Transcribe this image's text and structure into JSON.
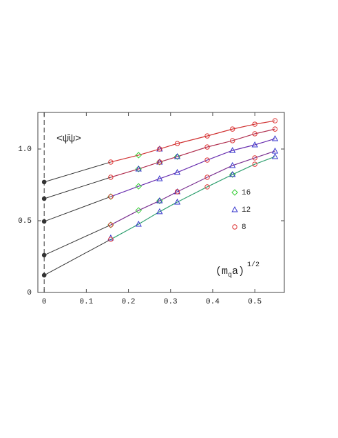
{
  "chart_data": {
    "type": "scatter",
    "y_label": "<ψ̄ψ>",
    "x_label": {
      "open": "(m",
      "sub": "q",
      "close": "a)",
      "sup": "1/2"
    },
    "xlim": [
      -0.015,
      0.57
    ],
    "ylim": [
      0,
      1.255
    ],
    "xticks": [
      0,
      0.1,
      0.2,
      0.3,
      0.4,
      0.5
    ],
    "yticks": [
      0,
      0.5,
      {
        "value": 1,
        "label": "1.0"
      }
    ],
    "reference_line_x": 0,
    "fit_color": "#333333",
    "legend": "right",
    "curves": [
      {
        "color": "#d03030",
        "x": [
          0,
          0.158,
          0.224,
          0.274,
          0.316,
          0.387,
          0.447,
          0.5,
          0.548
        ],
        "values": [
          0.77,
          0.909,
          0.957,
          1.0,
          1.038,
          1.091,
          1.139,
          1.173,
          1.197
        ]
      },
      {
        "color": "#b03050",
        "x": [
          0,
          0.158,
          0.224,
          0.274,
          0.316,
          0.387,
          0.447,
          0.5,
          0.548
        ],
        "values": [
          0.654,
          0.803,
          0.861,
          0.909,
          0.947,
          1.014,
          1.058,
          1.106,
          1.139
        ]
      },
      {
        "color": "#6a30b0",
        "x": [
          0,
          0.158,
          0.224,
          0.274,
          0.316,
          0.387,
          0.447,
          0.5,
          0.548
        ],
        "values": [
          0.495,
          0.668,
          0.74,
          0.793,
          0.837,
          0.923,
          0.99,
          1.029,
          1.072
        ]
      },
      {
        "color": "#7a3090",
        "x": [
          0,
          0.158,
          0.224,
          0.274,
          0.316,
          0.387,
          0.447,
          0.5,
          0.548
        ],
        "values": [
          0.26,
          0.471,
          0.572,
          0.639,
          0.702,
          0.803,
          0.885,
          0.938,
          0.986
        ]
      },
      {
        "color": "#30a070",
        "x": [
          0,
          0.158,
          0.224,
          0.274,
          0.316,
          0.387,
          0.447,
          0.5,
          0.548
        ],
        "values": [
          0.12,
          0.37,
          0.476,
          0.563,
          0.63,
          0.736,
          0.822,
          0.894,
          0.947
        ]
      }
    ],
    "series": [
      {
        "name": "16",
        "color": "#33cc33",
        "marker": "diamond",
        "x": [
          0.224,
          0.224,
          0.274,
          0.316,
          0.158,
          0.224,
          0.158,
          0.224,
          0.274,
          0.447
        ],
        "values": [
          0.957,
          0.861,
          0.909,
          0.947,
          0.668,
          0.74,
          0.471,
          0.572,
          0.639,
          0.822
        ]
      },
      {
        "name": "12",
        "color": "#3333cc",
        "marker": "triangle",
        "x": [
          0.274,
          0.224,
          0.274,
          0.316,
          0.274,
          0.316,
          0.447,
          0.5,
          0.548,
          0.274,
          0.316,
          0.447,
          0.548,
          0.158,
          0.224,
          0.274,
          0.316,
          0.447,
          0.548
        ],
        "values": [
          1.0,
          0.861,
          0.909,
          0.947,
          0.793,
          0.837,
          0.99,
          1.029,
          1.072,
          0.639,
          0.702,
          0.885,
          0.986,
          0.38,
          0.476,
          0.563,
          0.63,
          0.822,
          0.947
        ]
      },
      {
        "name": "8",
        "color": "#dd3333",
        "marker": "circle",
        "x": [
          0.158,
          0.274,
          0.316,
          0.387,
          0.447,
          0.5,
          0.548,
          0.158,
          0.274,
          0.387,
          0.447,
          0.5,
          0.548,
          0.158,
          0.387,
          0.158,
          0.316,
          0.387,
          0.5,
          0.158,
          0.387,
          0.5
        ],
        "values": [
          0.909,
          1.0,
          1.038,
          1.091,
          1.139,
          1.173,
          1.197,
          0.803,
          0.909,
          1.014,
          1.058,
          1.106,
          1.139,
          0.668,
          0.923,
          0.471,
          0.702,
          0.803,
          0.938,
          0.37,
          0.736,
          0.894
        ]
      }
    ]
  }
}
